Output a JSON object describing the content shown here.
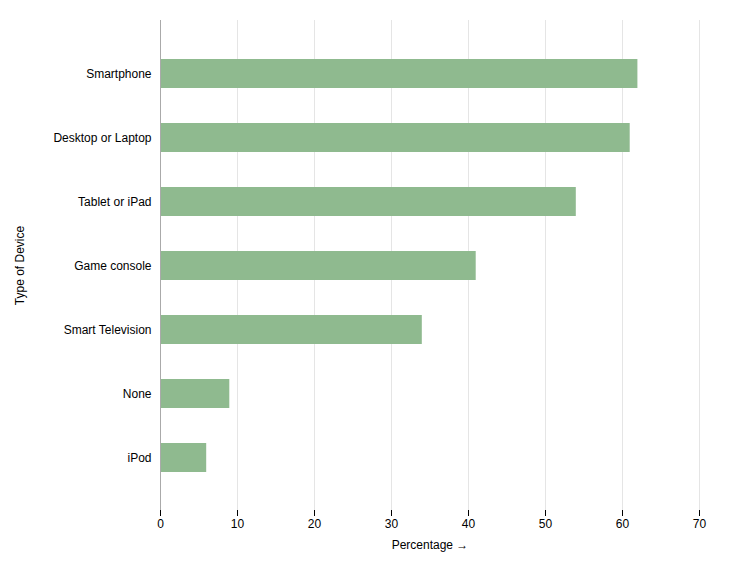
{
  "chart_data": {
    "type": "bar",
    "orientation": "horizontal",
    "categories": [
      "Smartphone",
      "Desktop or Laptop",
      "Tablet or iPad",
      "Game console",
      "Smart Television",
      "None",
      "iPod"
    ],
    "values": [
      62,
      61,
      54,
      41,
      34,
      9,
      6
    ],
    "color": "#8fba8f",
    "xlabel": "Percentage",
    "ylabel": "Type of Device",
    "xlim": [
      0,
      70
    ],
    "xticks": [
      0,
      10,
      20,
      30,
      40,
      50,
      60,
      70
    ],
    "grid": true
  }
}
